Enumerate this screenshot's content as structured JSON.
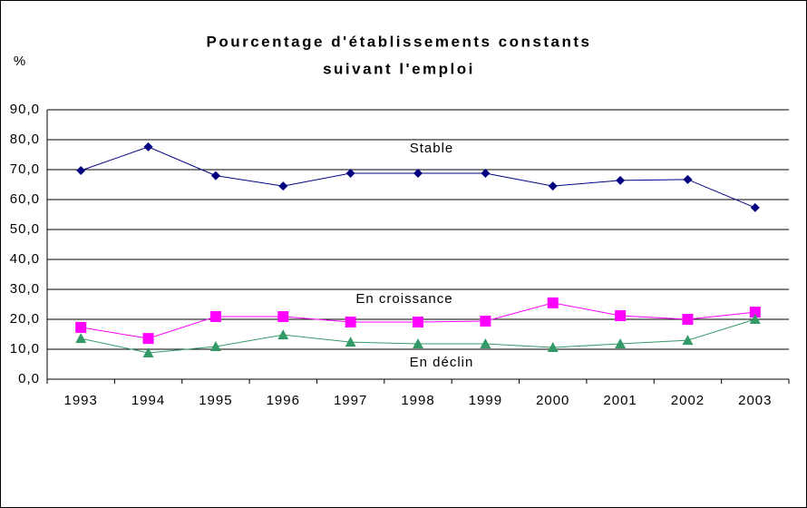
{
  "chart_data": {
    "type": "line",
    "title": [
      "Pourcentage d'établissements constants",
      "suivant l'emploi"
    ],
    "y_label": "%",
    "categories": [
      "1993",
      "1994",
      "1995",
      "1996",
      "1997",
      "1998",
      "1999",
      "2000",
      "2001",
      "2002",
      "2003"
    ],
    "series": [
      {
        "name": "Stable",
        "color": "#000080",
        "marker": "diamond",
        "values": [
          69.7,
          77.6,
          68.0,
          64.5,
          68.8,
          68.8,
          68.8,
          64.5,
          66.4,
          66.7,
          57.3
        ]
      },
      {
        "name": "En croissance",
        "color": "#ff00ff",
        "marker": "square",
        "values": [
          17.3,
          13.6,
          20.9,
          20.9,
          19.1,
          19.1,
          19.4,
          25.5,
          21.2,
          20.0,
          22.4
        ]
      },
      {
        "name": "En déclin",
        "color": "#339966",
        "marker": "triangle",
        "values": [
          13.6,
          8.8,
          10.9,
          14.8,
          12.4,
          11.8,
          11.8,
          10.6,
          11.8,
          13.0,
          20.0
        ]
      }
    ],
    "ylim": [
      0,
      90
    ],
    "yticks": [
      {
        "value": 0,
        "label": "0,0"
      },
      {
        "value": 10,
        "label": "10,0"
      },
      {
        "value": 20,
        "label": "20,0"
      },
      {
        "value": 30,
        "label": "30,0"
      },
      {
        "value": 40,
        "label": "40,0"
      },
      {
        "value": 50,
        "label": "50,0"
      },
      {
        "value": 60,
        "label": "60,0"
      },
      {
        "value": 70,
        "label": "70,0"
      },
      {
        "value": 80,
        "label": "80,0"
      },
      {
        "value": 90,
        "label": "90,0"
      }
    ],
    "grid": true
  }
}
